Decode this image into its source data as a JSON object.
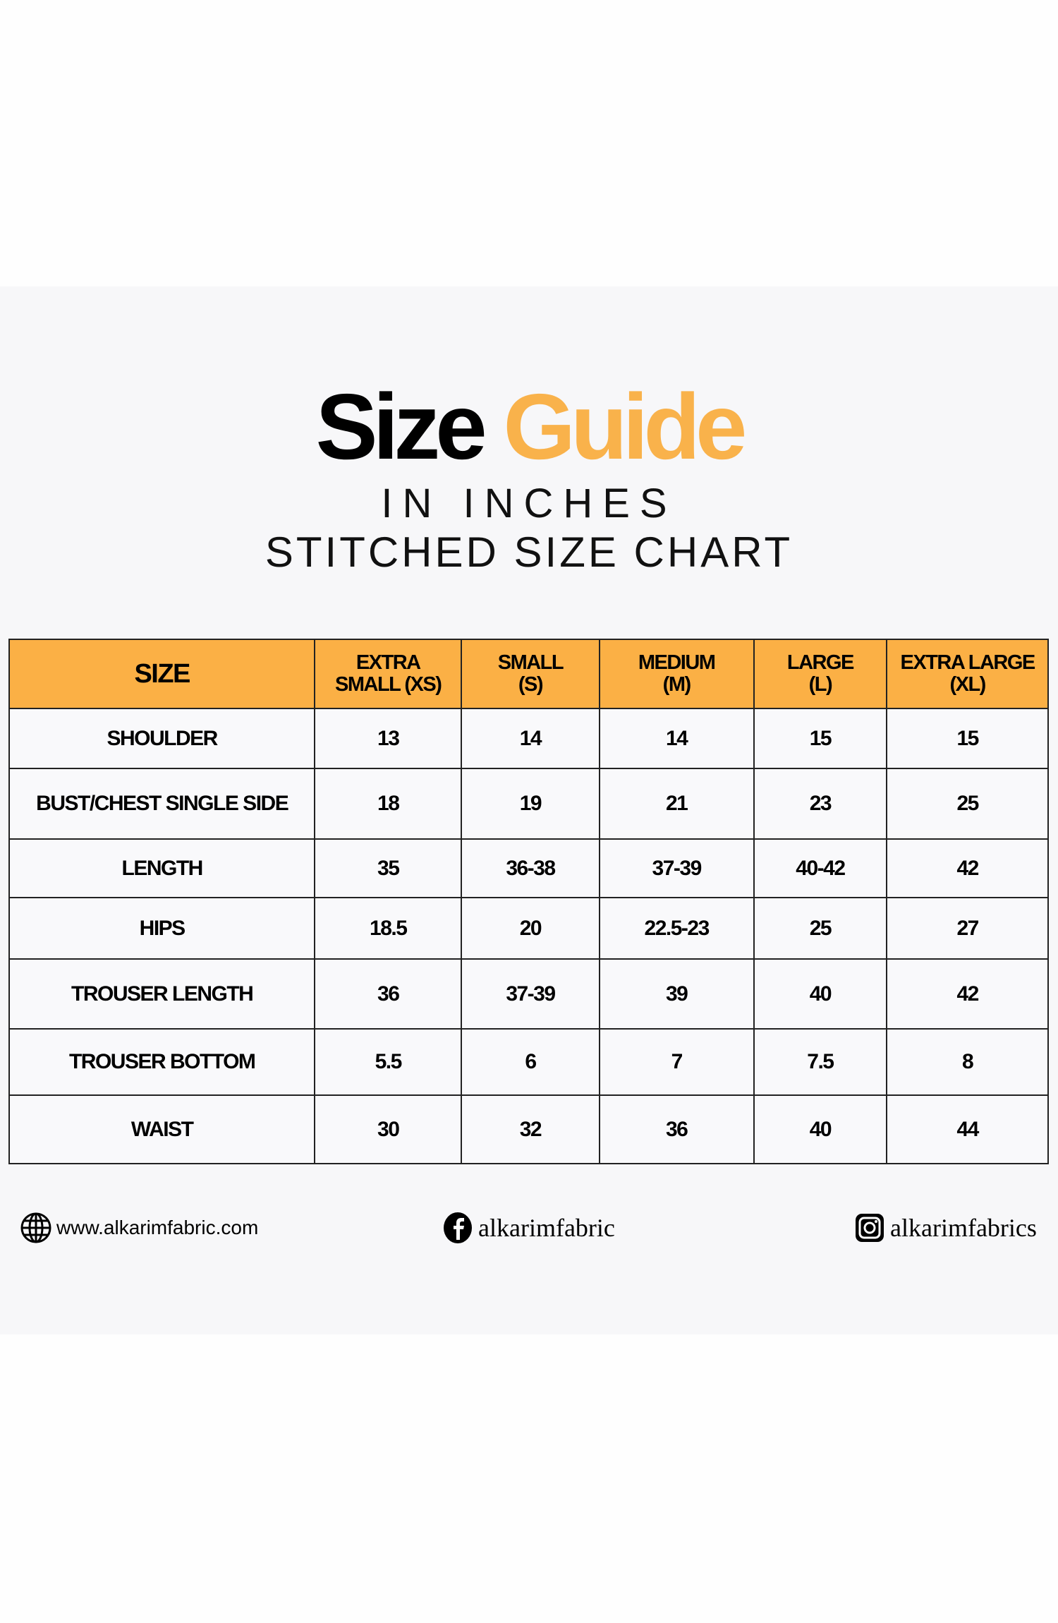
{
  "title": {
    "word1": "Size",
    "word2": "Guide"
  },
  "subtitle1": "IN INCHES",
  "subtitle2": "STITCHED SIZE CHART",
  "colors": {
    "accent": "#F9B24B",
    "header_bg": "#FBB045",
    "panel_bg": "#F7F7F9"
  },
  "table": {
    "headers": [
      [
        "SIZE"
      ],
      [
        "EXTRA",
        "SMALL (XS)"
      ],
      [
        "SMALL",
        "(S)"
      ],
      [
        "MEDIUM",
        "(M)"
      ],
      [
        "LARGE",
        "(L)"
      ],
      [
        "EXTRA LARGE",
        "(XL)"
      ]
    ],
    "rows": [
      [
        "SHOULDER",
        "13",
        "14",
        "14",
        "15",
        "15"
      ],
      [
        "BUST/CHEST SINGLE SIDE",
        "18",
        "19",
        "21",
        "23",
        "25"
      ],
      [
        "LENGTH",
        "35",
        "36-38",
        "37-39",
        "40-42",
        "42"
      ],
      [
        "HIPS",
        "18.5",
        "20",
        "22.5-23",
        "25",
        "27"
      ],
      [
        "TROUSER LENGTH",
        "36",
        "37-39",
        "39",
        "40",
        "42"
      ],
      [
        "TROUSER BOTTOM",
        "5.5",
        "6",
        "7",
        "7.5",
        "8"
      ],
      [
        "WAIST",
        "30",
        "32",
        "36",
        "40",
        "44"
      ]
    ]
  },
  "footer": {
    "website": {
      "icon": "globe-icon",
      "text": "www.alkarimfabric.com"
    },
    "facebook": {
      "icon": "facebook-icon",
      "text": "alkarimfabric"
    },
    "instagram": {
      "icon": "instagram-icon",
      "text": "alkarimfabrics"
    }
  }
}
